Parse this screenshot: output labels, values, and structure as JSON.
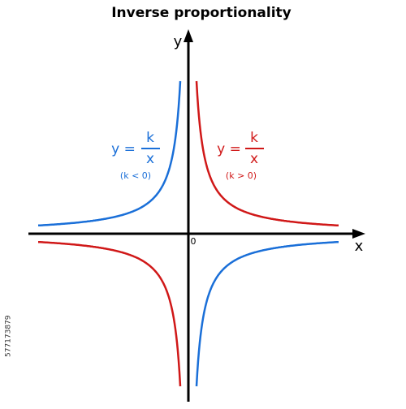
{
  "title": "Inverse proportionality",
  "axes": {
    "x": "x",
    "y": "y",
    "origin": "0"
  },
  "formulas": [
    {
      "lhs": "y =",
      "numerator": "k",
      "denominator": "x",
      "condition": "(k < 0)"
    },
    {
      "lhs": "y =",
      "numerator": "k",
      "denominator": "x",
      "condition": "(k > 0)"
    }
  ],
  "watermark": "577173879"
}
